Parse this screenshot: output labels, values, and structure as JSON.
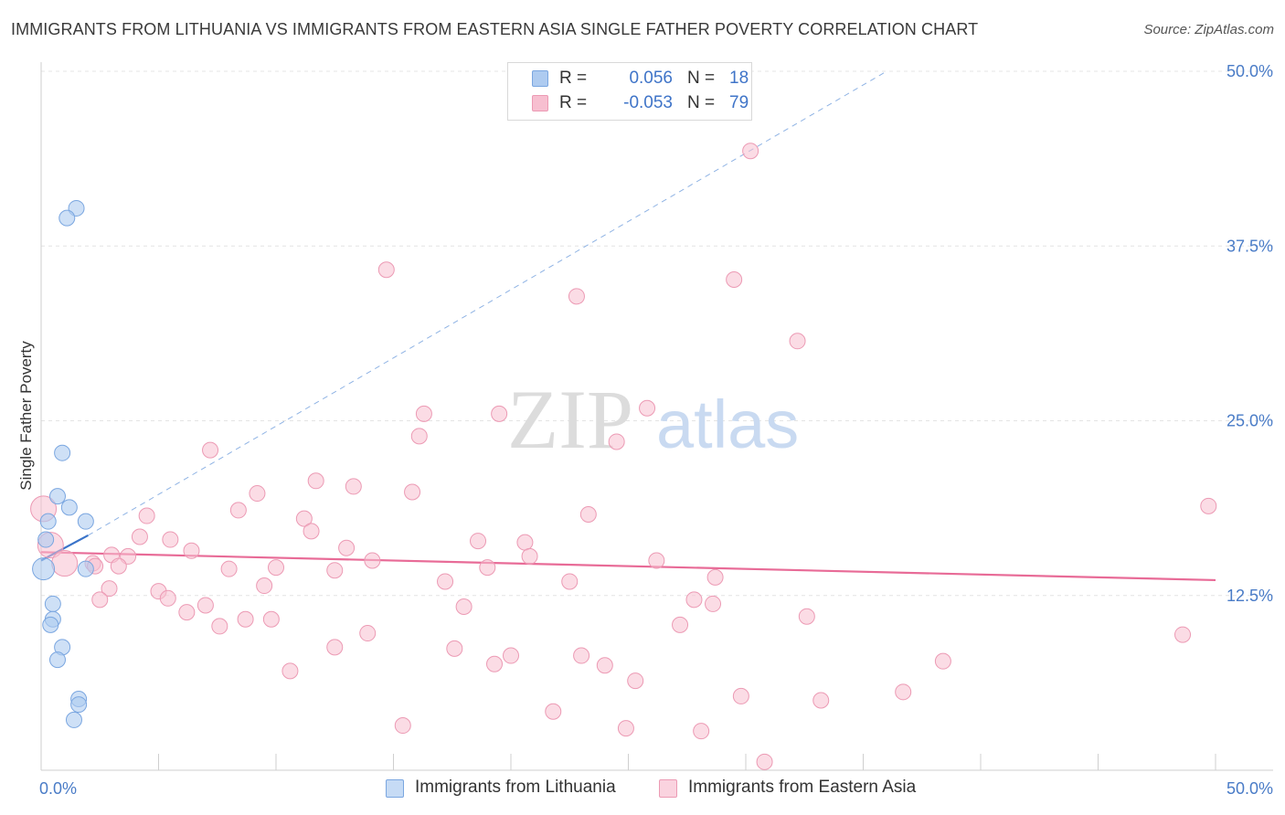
{
  "title": "IMMIGRANTS FROM LITHUANIA VS IMMIGRANTS FROM EASTERN ASIA SINGLE FATHER POVERTY CORRELATION CHART",
  "source": "Source: ZipAtlas.com",
  "watermark": {
    "zip": "ZIP",
    "atlas": "atlas"
  },
  "legend": {
    "rows": [
      {
        "r_label": "R =",
        "r_value": "0.056",
        "n_label": "N =",
        "n_value": "18"
      },
      {
        "r_label": "R =",
        "r_value": "-0.053",
        "n_label": "N =",
        "n_value": "79"
      }
    ]
  },
  "colors": {
    "lithuania_fill": "#aecbf0",
    "lithuania_stroke": "#7aa6e0",
    "lithuania_line": "#3b74c9",
    "easia_fill": "#f7bfd0",
    "easia_stroke": "#ec9ab4",
    "easia_line": "#e86b97"
  },
  "chart_data": {
    "type": "scatter",
    "title": "IMMIGRANTS FROM LITHUANIA VS IMMIGRANTS FROM EASTERN ASIA SINGLE FATHER POVERTY CORRELATION CHART",
    "xlabel": "",
    "ylabel": "Single Father Poverty",
    "xlim": [
      0,
      50
    ],
    "ylim": [
      0,
      50
    ],
    "x_tick_labels": [
      "0.0%",
      "50.0%"
    ],
    "y_tick_labels": [
      "12.5%",
      "25.0%",
      "37.5%",
      "50.0%"
    ],
    "y_ticks": [
      12.5,
      25.0,
      37.5,
      50.0
    ],
    "grid": true,
    "legend_position": "top-center",
    "series": [
      {
        "name": "Immigrants from Lithuania",
        "r": 0.056,
        "n": 18,
        "trend": {
          "x0": 0,
          "y0": 15.0,
          "x1": 2.0,
          "y1": 16.8
        },
        "trend_extended": {
          "x0": 2.0,
          "y0": 16.8,
          "x1": 36.0,
          "y1": 50.0
        },
        "points": [
          {
            "x": 1.5,
            "y": 40.2
          },
          {
            "x": 1.1,
            "y": 39.5
          },
          {
            "x": 0.9,
            "y": 22.7
          },
          {
            "x": 0.7,
            "y": 19.6
          },
          {
            "x": 1.2,
            "y": 18.8
          },
          {
            "x": 0.3,
            "y": 17.8
          },
          {
            "x": 1.9,
            "y": 17.8
          },
          {
            "x": 0.2,
            "y": 16.5
          },
          {
            "x": 1.9,
            "y": 14.4
          },
          {
            "x": 0.1,
            "y": 14.4
          },
          {
            "x": 0.5,
            "y": 11.9
          },
          {
            "x": 0.5,
            "y": 10.8
          },
          {
            "x": 0.4,
            "y": 10.4
          },
          {
            "x": 0.9,
            "y": 8.8
          },
          {
            "x": 0.7,
            "y": 7.9
          },
          {
            "x": 1.6,
            "y": 5.1
          },
          {
            "x": 1.6,
            "y": 4.7
          },
          {
            "x": 1.4,
            "y": 3.6
          }
        ]
      },
      {
        "name": "Immigrants from Eastern Asia",
        "r": -0.053,
        "n": 79,
        "trend": {
          "x0": 0,
          "y0": 15.6,
          "x1": 50,
          "y1": 13.6
        },
        "points": [
          {
            "x": 30.2,
            "y": 44.3
          },
          {
            "x": 14.7,
            "y": 35.8
          },
          {
            "x": 29.5,
            "y": 35.1
          },
          {
            "x": 22.8,
            "y": 33.9
          },
          {
            "x": 32.2,
            "y": 30.7
          },
          {
            "x": 25.8,
            "y": 25.9
          },
          {
            "x": 16.3,
            "y": 25.5
          },
          {
            "x": 19.5,
            "y": 25.5
          },
          {
            "x": 16.1,
            "y": 23.9
          },
          {
            "x": 24.5,
            "y": 23.5
          },
          {
            "x": 7.2,
            "y": 22.9
          },
          {
            "x": 11.7,
            "y": 20.7
          },
          {
            "x": 13.3,
            "y": 20.3
          },
          {
            "x": 15.8,
            "y": 19.9
          },
          {
            "x": 9.2,
            "y": 19.8
          },
          {
            "x": 8.4,
            "y": 18.6
          },
          {
            "x": 4.5,
            "y": 18.2
          },
          {
            "x": 23.3,
            "y": 18.3
          },
          {
            "x": 11.2,
            "y": 18.0
          },
          {
            "x": 11.5,
            "y": 17.1
          },
          {
            "x": 49.7,
            "y": 18.9
          },
          {
            "x": 4.2,
            "y": 16.7
          },
          {
            "x": 5.5,
            "y": 16.5
          },
          {
            "x": 18.6,
            "y": 16.4
          },
          {
            "x": 20.6,
            "y": 16.3
          },
          {
            "x": 13.0,
            "y": 15.9
          },
          {
            "x": 6.4,
            "y": 15.7
          },
          {
            "x": 3.0,
            "y": 15.4
          },
          {
            "x": 3.7,
            "y": 15.3
          },
          {
            "x": 20.8,
            "y": 15.3
          },
          {
            "x": 14.1,
            "y": 15.0
          },
          {
            "x": 26.2,
            "y": 15.0
          },
          {
            "x": 2.2,
            "y": 14.8
          },
          {
            "x": 2.3,
            "y": 14.6
          },
          {
            "x": 3.3,
            "y": 14.6
          },
          {
            "x": 8.0,
            "y": 14.4
          },
          {
            "x": 10.0,
            "y": 14.5
          },
          {
            "x": 12.5,
            "y": 14.3
          },
          {
            "x": 19.0,
            "y": 14.5
          },
          {
            "x": 28.7,
            "y": 13.8
          },
          {
            "x": 17.2,
            "y": 13.5
          },
          {
            "x": 22.5,
            "y": 13.5
          },
          {
            "x": 2.9,
            "y": 13.0
          },
          {
            "x": 9.5,
            "y": 13.2
          },
          {
            "x": 5.0,
            "y": 12.8
          },
          {
            "x": 5.4,
            "y": 12.3
          },
          {
            "x": 2.5,
            "y": 12.2
          },
          {
            "x": 27.8,
            "y": 12.2
          },
          {
            "x": 28.6,
            "y": 11.9
          },
          {
            "x": 7.0,
            "y": 11.8
          },
          {
            "x": 18.0,
            "y": 11.7
          },
          {
            "x": 6.2,
            "y": 11.3
          },
          {
            "x": 32.6,
            "y": 11.0
          },
          {
            "x": 8.7,
            "y": 10.8
          },
          {
            "x": 9.8,
            "y": 10.8
          },
          {
            "x": 7.6,
            "y": 10.3
          },
          {
            "x": 27.2,
            "y": 10.4
          },
          {
            "x": 13.9,
            "y": 9.8
          },
          {
            "x": 48.6,
            "y": 9.7
          },
          {
            "x": 12.5,
            "y": 8.8
          },
          {
            "x": 17.6,
            "y": 8.7
          },
          {
            "x": 20.0,
            "y": 8.2
          },
          {
            "x": 23.0,
            "y": 8.2
          },
          {
            "x": 19.3,
            "y": 7.6
          },
          {
            "x": 24.0,
            "y": 7.5
          },
          {
            "x": 38.4,
            "y": 7.8
          },
          {
            "x": 10.6,
            "y": 7.1
          },
          {
            "x": 25.3,
            "y": 6.4
          },
          {
            "x": 36.7,
            "y": 5.6
          },
          {
            "x": 29.8,
            "y": 5.3
          },
          {
            "x": 33.2,
            "y": 5.0
          },
          {
            "x": 21.8,
            "y": 4.2
          },
          {
            "x": 15.4,
            "y": 3.2
          },
          {
            "x": 24.9,
            "y": 3.0
          },
          {
            "x": 28.1,
            "y": 2.8
          },
          {
            "x": 30.8,
            "y": 0.6
          },
          {
            "x": 0.1,
            "y": 18.7
          },
          {
            "x": 0.4,
            "y": 16.1
          },
          {
            "x": 1.0,
            "y": 14.8
          }
        ]
      }
    ]
  },
  "bottom_legend": {
    "lithuania": "Immigrants from Lithuania",
    "easia": "Immigrants from Eastern Asia"
  }
}
